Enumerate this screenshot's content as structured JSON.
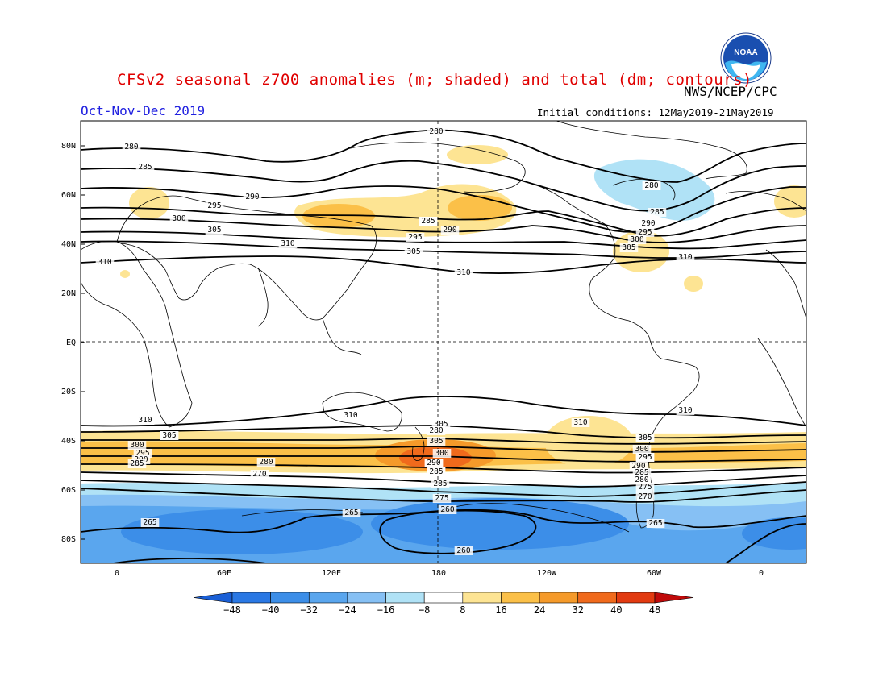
{
  "header": {
    "title": "CFSv2 seasonal z700 anomalies (m; shaded) and total (dm; contours)",
    "organization": "NWS/NCEP/CPC",
    "season": "Oct-Nov-Dec 2019",
    "initial_conditions": "Initial conditions: 12May2019-21May2019",
    "logo_text": "NOAA"
  },
  "map": {
    "lat_labels": [
      "80N",
      "60N",
      "40N",
      "20N",
      "EQ",
      "20S",
      "40S",
      "60S",
      "80S"
    ],
    "lon_labels": [
      "0",
      "60E",
      "120E",
      "180",
      "120W",
      "60W",
      "0"
    ]
  },
  "contour_labels": [
    "280",
    "280",
    "285",
    "290",
    "295",
    "300",
    "305",
    "310",
    "310",
    "285",
    "290",
    "295",
    "305",
    "310",
    "280",
    "285",
    "290",
    "295",
    "300",
    "305",
    "310",
    "310",
    "310",
    "305",
    "310",
    "305",
    "300",
    "295",
    "290",
    "285",
    "280",
    "270",
    "280",
    "305",
    "300",
    "295",
    "290",
    "285",
    "275",
    "265",
    "260",
    "265",
    "260",
    "285",
    "300",
    "295",
    "290",
    "285",
    "280",
    "275",
    "270",
    "265",
    "305",
    "310",
    "310",
    "305",
    "295",
    "290",
    "285",
    "280",
    "285"
  ],
  "colorbar": {
    "labels": [
      "-48",
      "-40",
      "-32",
      "-24",
      "-16",
      "-8",
      "8",
      "16",
      "24",
      "32",
      "40",
      "48"
    ],
    "colors": [
      "#1a5fd6",
      "#2a78e4",
      "#3c8ee8",
      "#5aa6ee",
      "#86c0f4",
      "#b0e2f6",
      "#ffffff",
      "#fde493",
      "#fbc048",
      "#f59a2a",
      "#f06a1c",
      "#e23a10",
      "#c00a0a"
    ]
  }
}
